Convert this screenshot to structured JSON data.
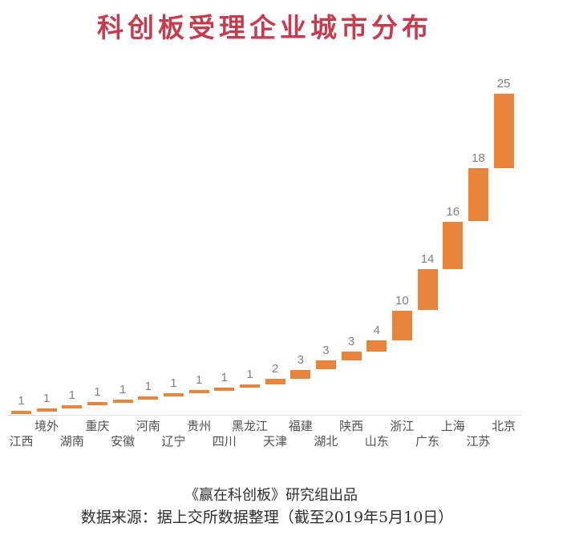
{
  "title": "科创板受理企业城市分布",
  "colors": {
    "title": "#c43c4d",
    "bar": "#e8843c",
    "value_label": "#7f7f7f",
    "category_label": "#4f4f4f",
    "axis_line": "#dddddd"
  },
  "footer": {
    "credit": "《赢在科创板》研究组出品",
    "source": "数据来源：据上交所数据整理（截至2019年5月10日）"
  },
  "chart_data": {
    "type": "bar",
    "subtype": "waterfall",
    "title": "科创板受理企业城市分布",
    "categories": [
      "江西",
      "境外",
      "湖南",
      "重庆",
      "安徽",
      "河南",
      "辽宁",
      "贵州",
      "四川",
      "黑龙江",
      "天津",
      "福建",
      "湖北",
      "陕西",
      "山东",
      "浙江",
      "广东",
      "上海",
      "江苏",
      "北京"
    ],
    "values": [
      1,
      1,
      1,
      1,
      1,
      1,
      1,
      1,
      1,
      1,
      2,
      3,
      3,
      3,
      4,
      10,
      14,
      16,
      18,
      25
    ],
    "total": 108,
    "xlabel": "",
    "ylabel": "",
    "ylim": [
      0,
      108
    ],
    "grid": false,
    "legend": false,
    "value_labels_shown": true,
    "category_label_layout": "staggered-two-rows"
  }
}
